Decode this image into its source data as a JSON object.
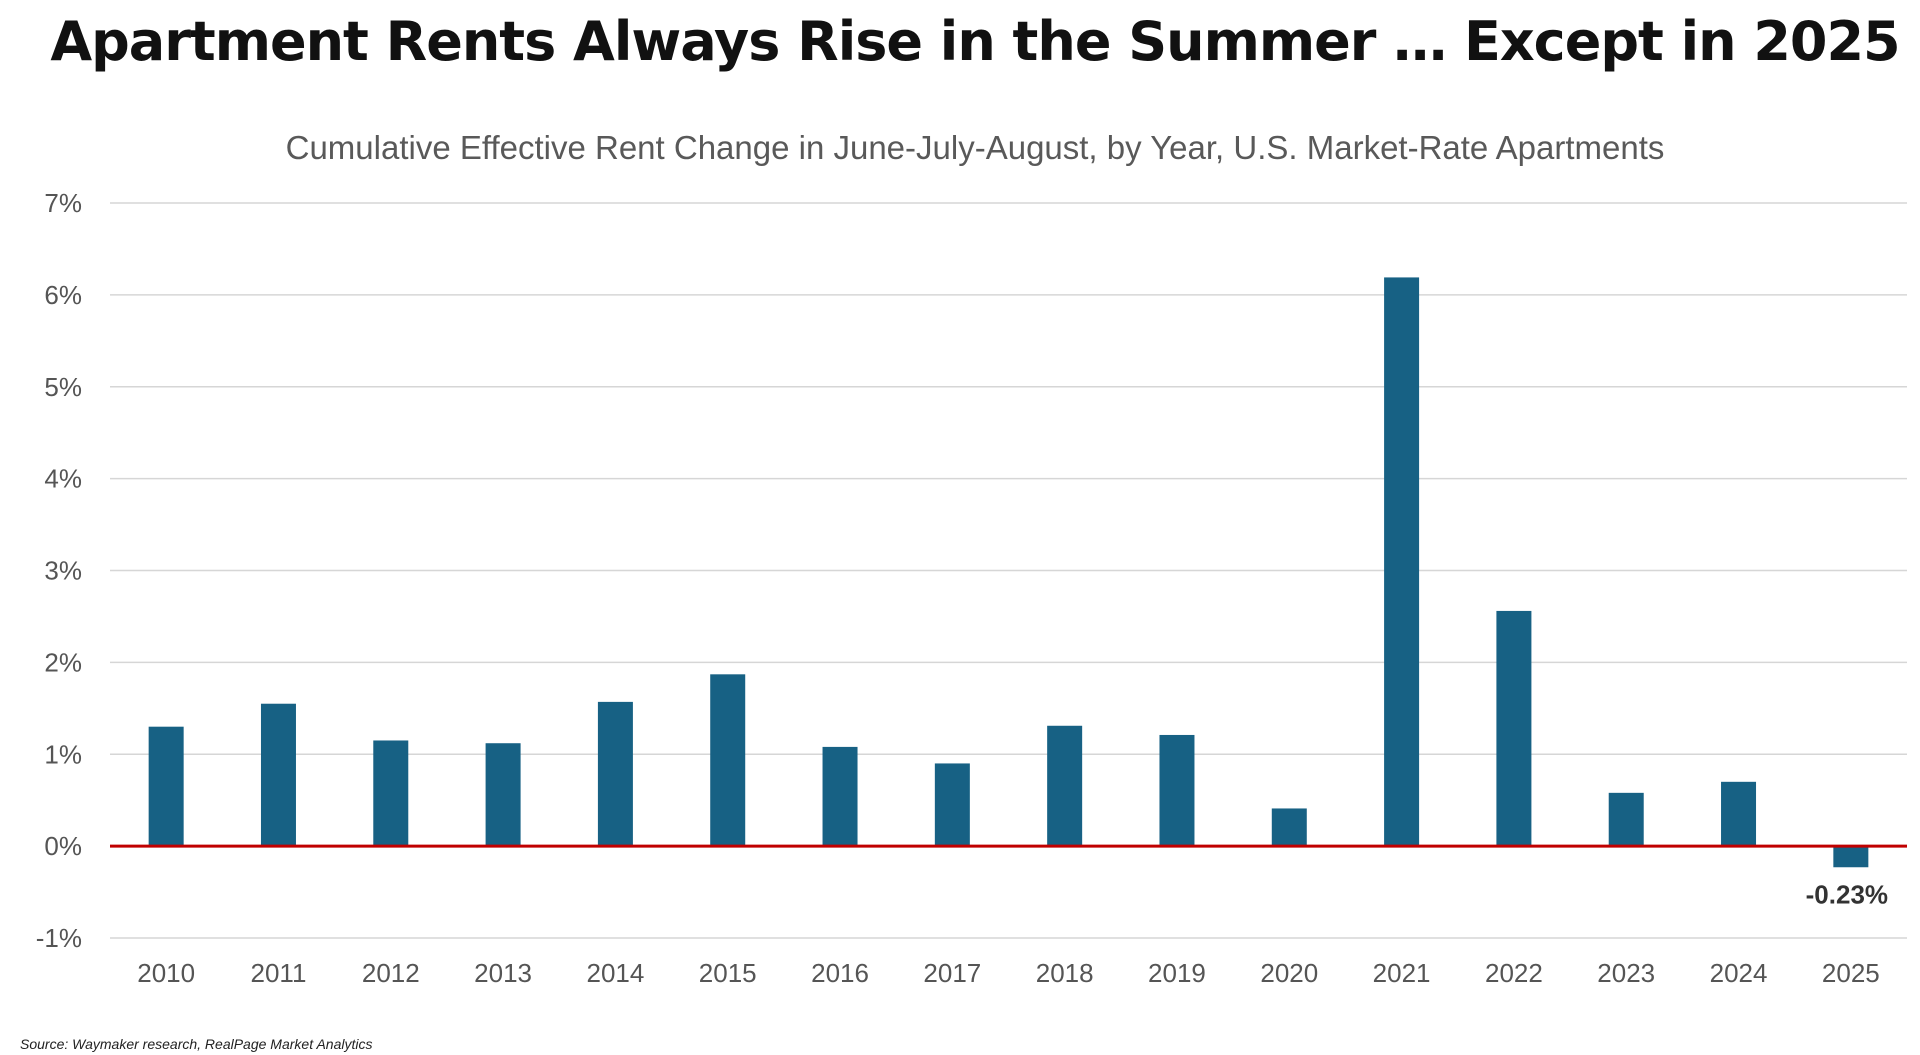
{
  "page_title": "Apartment Rents Always Rise in the Summer … Except in 2025",
  "source": "Source: Waymaker research, RealPage Market Analytics",
  "colors": {
    "bar": "#176184",
    "zero_line": "#c00000",
    "grid": "#d6d6d6",
    "tick_text": "#555555"
  },
  "chart_data": {
    "type": "bar",
    "title": "Cumulative Effective Rent Change in June-July-August, by Year, U.S. Market-Rate Apartments",
    "xlabel": "",
    "ylabel": "",
    "categories": [
      "2010",
      "2011",
      "2012",
      "2013",
      "2014",
      "2015",
      "2016",
      "2017",
      "2018",
      "2019",
      "2020",
      "2021",
      "2022",
      "2023",
      "2024",
      "2025"
    ],
    "values": [
      1.3,
      1.55,
      1.15,
      1.12,
      1.57,
      1.87,
      1.08,
      0.9,
      1.31,
      1.21,
      0.41,
      6.19,
      2.56,
      0.58,
      0.7,
      -0.23
    ],
    "ylim": [
      -1,
      7
    ],
    "yticks": [
      "-1%",
      "0%",
      "1%",
      "2%",
      "3%",
      "4%",
      "5%",
      "6%",
      "7%"
    ],
    "ytick_values": [
      -1,
      0,
      1,
      2,
      3,
      4,
      5,
      6,
      7
    ],
    "grid": true,
    "legend": false,
    "annotations": [
      {
        "category": "2025",
        "text": "-0.23%"
      }
    ]
  }
}
